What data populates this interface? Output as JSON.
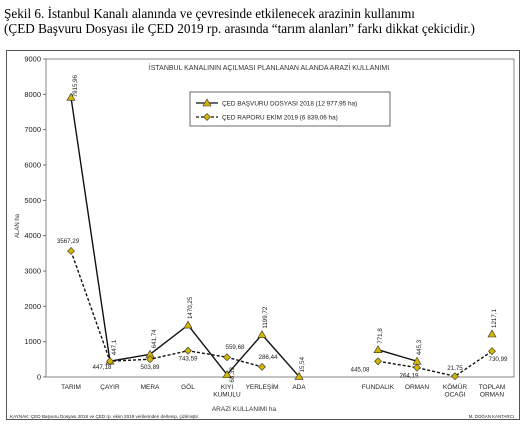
{
  "caption": {
    "line1": "Şekil 6. İstanbul Kanalı alanında ve çevresinde etkilenecek arazinin kullanımı",
    "line2": "(ÇED Başvuru Dosyası ile ÇED 2019 rp. arasında “tarım alanları” farkı dikkat  çekicidir.)"
  },
  "chart_data": {
    "type": "line",
    "title": "İSTANBUL KANALININ AÇILMASI PLANLANAN ALANDA ARAZİ KULLANIMI",
    "xlabel": "ARAZİ KULLANIMI  ha",
    "ylabel": "ALAN ha",
    "ylim": [
      0,
      9000
    ],
    "yticks": [
      "0",
      "1000",
      "2000",
      "3000",
      "4000",
      "5000",
      "6000",
      "7000",
      "8000",
      "9000"
    ],
    "categories": [
      "TARIM",
      "ÇAYIR",
      "MERA",
      "GÖL",
      "KIYI KUMULU",
      "YERLEŞİM",
      "ADA",
      "",
      "FUNDALIK",
      "ORMAN",
      "KÖMÜR OCAĞI",
      "TOPLAM ORMAN"
    ],
    "series": [
      {
        "name": "ÇED BAŞVURU DOSYASI 2018 (12 977,95 ha)",
        "color": "#d4b400",
        "marker": "triangle",
        "line": "solid",
        "values": [
          7915.96,
          447.1,
          641.74,
          1470.25,
          68.33,
          1199.72,
          15.54,
          null,
          771.8,
          445.3,
          null,
          1217.1
        ],
        "labels": [
          "7915,96",
          "447,1",
          "641,74",
          "1470,25",
          "68,33",
          "1199,72",
          "15,54",
          "",
          "771,8",
          "445,3",
          "",
          "1217,1"
        ]
      },
      {
        "name": "ÇED RAPORU EKİM 2019 (6 839,06 ha)",
        "color": "#d4b400",
        "marker": "diamond",
        "line": "dashed",
        "values": [
          3567.29,
          447.18,
          503.89,
          743.59,
          559.68,
          286.44,
          null,
          null,
          445.08,
          264.19,
          21.75,
          730.99
        ],
        "labels": [
          "3567,29",
          "447,18",
          "503,89",
          "743,59",
          "559,68",
          "286,44",
          "",
          "",
          "445,08",
          "264,19",
          "21,75",
          "730,99"
        ]
      }
    ],
    "legend_position": "top-center",
    "grid": false
  },
  "footer": {
    "source": "KAYNAK: ÇED Başvuru Dosyası 2018 ve ÇED rp. ekim 2019 verilerinden derlenip, çizilmiştir.",
    "author": "M. DOĞAN KANTARCI"
  }
}
